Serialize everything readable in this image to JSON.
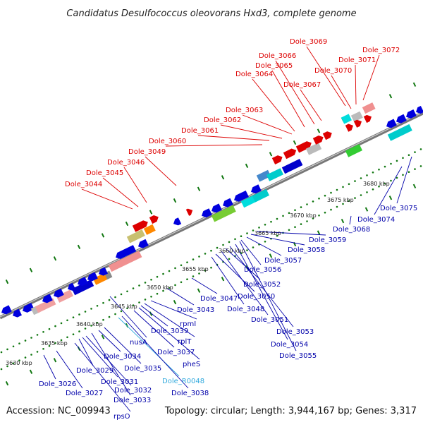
{
  "title": "Candidatus Desulfococcus oleovorans Hxd3, complete genome",
  "footer": {
    "accession": "Accession: NC_009943",
    "summary": "Topology: circular; Length: 3,944,167 bp; Genes: 3,317"
  },
  "colors": {
    "forward_label": "#dd0000",
    "reverse_label": "#0000aa",
    "rna_label": "#33aadd",
    "backbone": "#888888",
    "tick": "#117711"
  },
  "scale_labels": [
    "3630 kbp",
    "3635 kbp",
    "3640 kbp",
    "3645 kbp",
    "3650 kbp",
    "3655 kbp",
    "3660 kbp",
    "3665 kbp",
    "3670 kbp",
    "3675 kbp",
    "3680 kbp"
  ],
  "labels": [
    {
      "text": "Dole_3044",
      "strand": "forward"
    },
    {
      "text": "Dole_3045",
      "strand": "forward"
    },
    {
      "text": "Dole_3046",
      "strand": "forward"
    },
    {
      "text": "Dole_3049",
      "strand": "forward"
    },
    {
      "text": "Dole_3060",
      "strand": "forward"
    },
    {
      "text": "Dole_3061",
      "strand": "forward"
    },
    {
      "text": "Dole_3062",
      "strand": "forward"
    },
    {
      "text": "Dole_3063",
      "strand": "forward"
    },
    {
      "text": "Dole_3064",
      "strand": "forward"
    },
    {
      "text": "Dole_3065",
      "strand": "forward"
    },
    {
      "text": "Dole_3066",
      "strand": "forward"
    },
    {
      "text": "Dole_3067",
      "strand": "forward"
    },
    {
      "text": "Dole_3069",
      "strand": "forward"
    },
    {
      "text": "Dole_3070",
      "strand": "forward"
    },
    {
      "text": "Dole_3071",
      "strand": "forward"
    },
    {
      "text": "Dole_3072",
      "strand": "forward"
    },
    {
      "text": "Dole_3026",
      "strand": "reverse"
    },
    {
      "text": "Dole_3027",
      "strand": "reverse"
    },
    {
      "text": "rpsO",
      "strand": "reverse"
    },
    {
      "text": "Dole_3029",
      "strand": "reverse"
    },
    {
      "text": "Dole_3031",
      "strand": "reverse"
    },
    {
      "text": "Dole_3032",
      "strand": "reverse"
    },
    {
      "text": "Dole_3033",
      "strand": "reverse"
    },
    {
      "text": "Dole_3034",
      "strand": "reverse"
    },
    {
      "text": "Dole_3035",
      "strand": "reverse"
    },
    {
      "text": "nusA",
      "strand": "reverse"
    },
    {
      "text": "Dole_R0048",
      "strand": "rna"
    },
    {
      "text": "Dole_3038",
      "strand": "reverse"
    },
    {
      "text": "Dole_3037",
      "strand": "reverse"
    },
    {
      "text": "pheS",
      "strand": "reverse"
    },
    {
      "text": "Dole_3039",
      "strand": "reverse"
    },
    {
      "text": "rplT",
      "strand": "reverse"
    },
    {
      "text": "rpmI",
      "strand": "reverse"
    },
    {
      "text": "Dole_3043",
      "strand": "reverse"
    },
    {
      "text": "Dole_3047",
      "strand": "reverse"
    },
    {
      "text": "Dole_3048",
      "strand": "reverse"
    },
    {
      "text": "Dole_3050",
      "strand": "reverse"
    },
    {
      "text": "Dole_3051",
      "strand": "reverse"
    },
    {
      "text": "Dole_3052",
      "strand": "reverse"
    },
    {
      "text": "Dole_3053",
      "strand": "reverse"
    },
    {
      "text": "Dole_3054",
      "strand": "reverse"
    },
    {
      "text": "Dole_3055",
      "strand": "reverse"
    },
    {
      "text": "Dole_3056",
      "strand": "reverse"
    },
    {
      "text": "Dole_3057",
      "strand": "reverse"
    },
    {
      "text": "Dole_3058",
      "strand": "reverse"
    },
    {
      "text": "Dole_3059",
      "strand": "reverse"
    },
    {
      "text": "Dole_3068",
      "strand": "reverse"
    },
    {
      "text": "Dole_3074",
      "strand": "reverse"
    },
    {
      "text": "Dole_3075",
      "strand": "reverse"
    }
  ]
}
